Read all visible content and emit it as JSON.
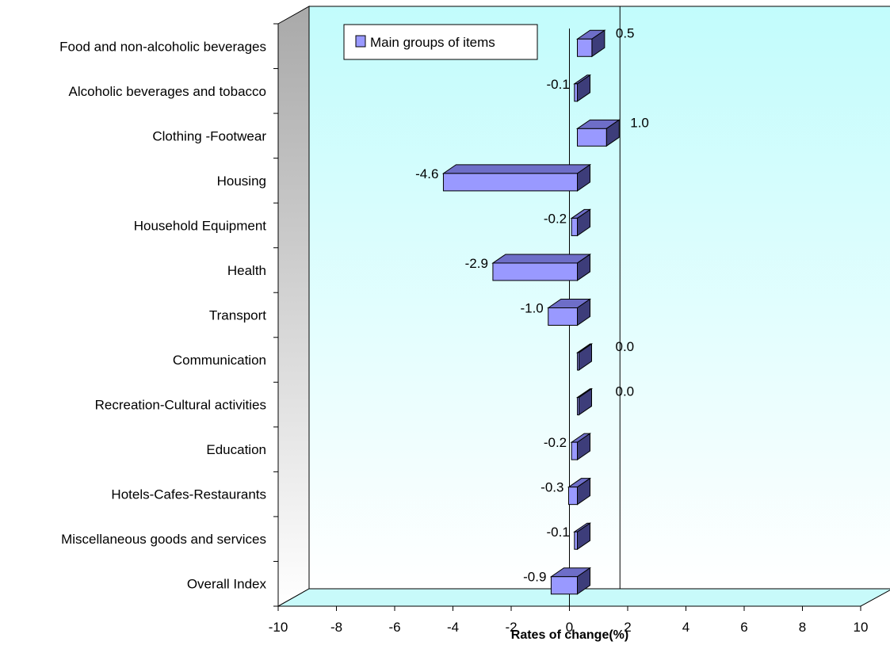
{
  "chart_data": {
    "type": "bar",
    "orientation": "horizontal",
    "categories": [
      "Food and non-alcoholic beverages",
      "Alcoholic beverages and tobacco",
      "Clothing -Footwear",
      "Housing",
      "Household Equipment",
      "Health",
      "Transport",
      "Communication",
      "Recreation-Cultural activities",
      "Education",
      "Hotels-Cafes-Restaurants",
      "Miscellaneous goods and services",
      "Overall Index"
    ],
    "series": [
      {
        "name": "Main groups of items",
        "values": [
          0.5,
          -0.1,
          1.0,
          -4.6,
          -0.2,
          -2.9,
          -1.0,
          0.0,
          0.0,
          -0.2,
          -0.3,
          -0.1,
          -0.9
        ],
        "labels": [
          "0.5",
          "-0.1",
          "1.0",
          "-4.6",
          "-0.2",
          "-2.9",
          "-1.0",
          "0.0",
          "0.0",
          "-0.2",
          "-0.3",
          "-0.1",
          "-0.9"
        ]
      }
    ],
    "xlabel": "Rates of change(%)",
    "ylabel": "",
    "xlim": [
      -10,
      10
    ],
    "xticks": [
      "-10",
      "-8",
      "-6",
      "-4",
      "-2",
      "0",
      "2",
      "4",
      "6",
      "8",
      "10"
    ],
    "reference_line_x": 1,
    "legend_position": "top-left",
    "style": "3d",
    "colors": {
      "bar_front": "#9999ff",
      "bar_top": "#6e6ec8",
      "bar_side": "#3d3d7a",
      "plot_bg_top": "#c2fcfc",
      "plot_bg_bottom": "#ffffff",
      "wall_left_dark": "#a9a9a9",
      "wall_left_light": "#ffffff",
      "floor": "#c8fafa"
    }
  }
}
